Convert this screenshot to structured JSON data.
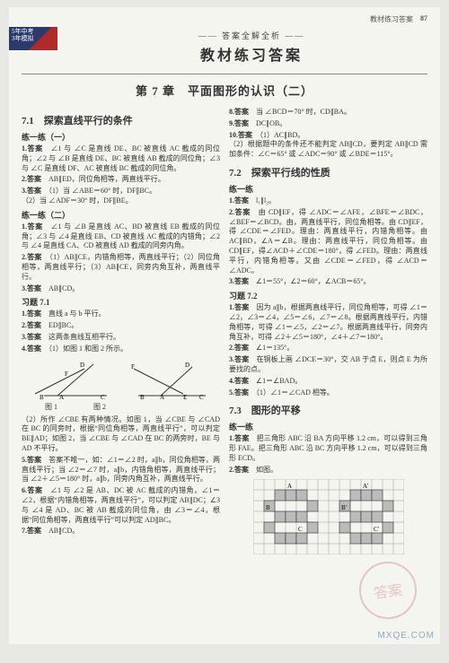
{
  "header": {
    "label": "教材练习答案",
    "page": "87"
  },
  "brand": {
    "line1": "5年中考",
    "line2": "3年模拟"
  },
  "title": {
    "sub": "—— 答案全解全析 ——",
    "main": "教材练习答案"
  },
  "chapter": "第 7 章　平面图形的认识（二）",
  "left": {
    "sec71": "7.1　探索直线平行的条件",
    "lx1": "练一练（一）",
    "i1": "∠1 与 ∠C 是直线 DE、BC 被直线 AC 截成的同位角；∠2 与 ∠B 是直线 DE、BC 被直线 AB 截成的同位角；∠3 与 ∠C 是直线 DF、AC 被直线 BC 截成的同位角。",
    "i2": "AB∥ED，同位角相等，两直线平行。",
    "i3": "（1）当 ∠ABE＝60° 时，DF∥BC。\n（2）当 ∠ADF＝30° 时，DF∥BE。",
    "lx2": "练一练（二）",
    "i4": "∠1 与 ∠B 是直线 AC、BD 被直线 EB 截成的同位角；∠3 与 ∠4 是直线 EB、CD 被直线 AC 截成的内错角；∠2 与 ∠4 是直线 CA、CD 被直线 AD 截成的同旁内角。",
    "i5": "（1）AB∥CE，内错角相等，两直线平行；（2）同位角相等，两直线平行；（3）AB∥CE，同旁内角互补，两直线平行。",
    "i6": "AB∥CD。",
    "xt71": "习题 7.1",
    "x1": "直线 a 与 b 平行。",
    "x2": "ED∥BC。",
    "x3": "这两条直线互相平行。",
    "x4": "（1）如图 1 和图 2 所示。",
    "fig1cap": "图 1",
    "fig2cap": "图 2",
    "x4b": "（2）所作 ∠CBE 有两种情况。如图 1，当 ∠CBE 与 ∠CAD 在 BC 的同旁时，根据“同位角相等，两直线平行”，可以判定 BE∥AD；如图 2，当 ∠CBE 与 ∠CAD 在 BC 的两旁时，BE 与 AD 不平行。",
    "x5": "答案不唯一，如：∠1＝∠2 时，a∥b，同位角相等，两直线平行；当 ∠2＝∠7 时，a∥b，内错角相等，两直线平行；当 ∠2＋∠5＝180° 时，a∥b，同旁内角互补，两直线平行。",
    "x6": "∠1 与 ∠2 是 AB、DC 被 AC 截成的内错角，∠1＝∠2，根据“内错角相等，两直线平行”，可以判定 AB∥DC；∠3 与 ∠4 是 AD、BC 被 AB 截成的同位角，由 ∠3＝∠4，根据“同位角相等，两直线平行”可以判定 AD∥BC。",
    "x7": "AB∥CD。"
  },
  "right": {
    "r8": "当 ∠BCD＝70° 时，CD∥BA。",
    "r9": "DC∥OB。",
    "r10": "（1）AC∥BD。\n（2）根据题中的条件还不能判定 AB∥CD，要判定 AB∥CD 需加条件：∠C＝65° 或 ∠ADC＝90° 或 ∠BDE＝115°。",
    "sec72": "7.2　探索平行线的性质",
    "lx": "练一练",
    "p1": "l₁∥l₂。",
    "p2": "由 CD∥EF，得 ∠ADC＝∠AFE，∠BFE＝∠BDC，∠BEF＝∠BCD。由，两直线平行，同位角相等。由 CD∥EF，得 ∠CDE＝∠FED。理由：两直线平行，内错角相等。由 AC∥BD，∠A＝∠B。理由：两直线平行，同位角相等。由 CD∥EF，得∠ACD＋∠CDE＝180°，得 ∠FED。理由：两直线平行，内错角相等。又由 ∠CDE＝∠FED，得 ∠ACD＝∠ADC。",
    "p3": "∠1＝55°，∠2＝60°，∠ACB＝65°。",
    "xt72": "习题 7.2",
    "q1": "因为 a∥b，根据两直线平行，同位角相等，可得 ∠1＝∠2，∠3＝∠4，∠5＝∠6，∠7＝∠8。根据两直线平行，内错角相等，可得 ∠1＝∠5，∠2＝∠7。根据两直线平行，同旁内角互补，可得 ∠2＋∠5＝180°，∠4＋∠7＝180°。",
    "q2": "∠1＝135°。",
    "q3": "在铜板上画 ∠DCE＝30°，交 AB 于点 E，则点 E 为所要找的点。",
    "q4": "∠1＝∠BAD。",
    "q5": "（1）∠1＝∠CAD 相等。",
    "sec73": "7.3　图形的平移",
    "lx73": "练一练",
    "t1": "把三角形 ABC 沿 BA 方向平移 1.2 cm，可以得到三角形 FAE。把三角形 ABC 沿 BC 方向平移 1.2 cm，可以得到三角形 ECD。",
    "t2": "如图。"
  },
  "fig": {
    "labelsA": [
      "F",
      "D",
      "B",
      "A",
      "C"
    ],
    "labelsB": [
      "D",
      "B",
      "A",
      "C",
      "E",
      "F"
    ]
  },
  "grid": {
    "cols": 14,
    "rows": 7,
    "labels": [
      "A",
      "B",
      "C",
      "A'",
      "B'",
      "C'"
    ]
  },
  "watermark": "MXQE.COM",
  "stamp": "答案"
}
